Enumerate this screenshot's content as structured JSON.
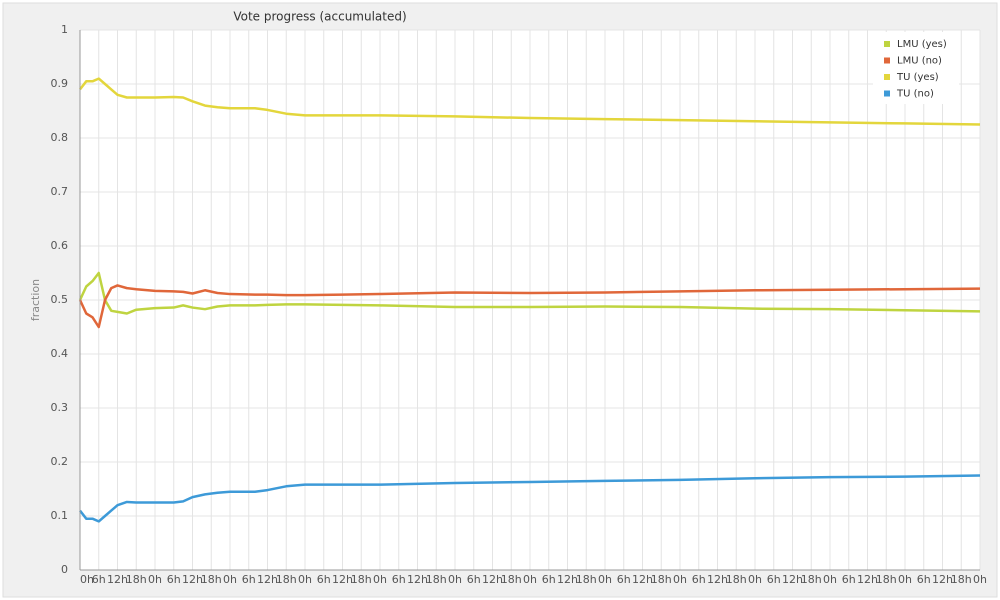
{
  "chart_data": {
    "type": "line",
    "title": "Vote progress (accumulated)",
    "y_label": "fraction",
    "x": [
      0,
      2,
      4,
      6,
      8,
      10,
      12,
      15,
      18,
      24,
      30,
      33,
      36,
      40,
      44,
      48,
      56,
      60,
      66,
      72,
      84,
      96,
      120,
      144,
      168,
      192,
      216,
      240,
      264,
      288
    ],
    "series": [
      {
        "name": "LMU (yes)",
        "color": "#bfd440",
        "values": [
          0.5,
          0.525,
          0.535,
          0.55,
          0.5,
          0.48,
          0.478,
          0.475,
          0.482,
          0.485,
          0.486,
          0.49,
          0.486,
          0.483,
          0.488,
          0.49,
          0.49,
          0.491,
          0.492,
          0.492,
          0.491,
          0.49,
          0.487,
          0.487,
          0.488,
          0.487,
          0.484,
          0.483,
          0.481,
          0.479
        ]
      },
      {
        "name": "LMU (no)",
        "color": "#e0673a",
        "values": [
          0.5,
          0.475,
          0.468,
          0.45,
          0.5,
          0.522,
          0.527,
          0.522,
          0.52,
          0.517,
          0.516,
          0.515,
          0.512,
          0.518,
          0.513,
          0.511,
          0.51,
          0.51,
          0.509,
          0.509,
          0.51,
          0.511,
          0.514,
          0.513,
          0.514,
          0.516,
          0.518,
          0.519,
          0.52,
          0.521
        ]
      },
      {
        "name": "TU (yes)",
        "color": "#e3d63c",
        "values": [
          0.89,
          0.905,
          0.905,
          0.91,
          0.9,
          0.89,
          0.88,
          0.875,
          0.875,
          0.875,
          0.876,
          0.875,
          0.868,
          0.86,
          0.857,
          0.855,
          0.855,
          0.852,
          0.845,
          0.842,
          0.842,
          0.842,
          0.84,
          0.837,
          0.835,
          0.833,
          0.831,
          0.829,
          0.827,
          0.825
        ]
      },
      {
        "name": "TU (no)",
        "color": "#3d9ad8",
        "values": [
          0.11,
          0.095,
          0.095,
          0.09,
          0.1,
          0.11,
          0.12,
          0.126,
          0.125,
          0.125,
          0.125,
          0.127,
          0.135,
          0.14,
          0.143,
          0.145,
          0.145,
          0.148,
          0.155,
          0.158,
          0.158,
          0.158,
          0.161,
          0.163,
          0.165,
          0.167,
          0.17,
          0.172,
          0.173,
          0.175
        ]
      }
    ],
    "xlim": [
      0,
      288
    ],
    "xticks": [
      {
        "value": 0,
        "label": "0h"
      },
      {
        "value": 6,
        "label": "6h"
      },
      {
        "value": 12,
        "label": "12h"
      },
      {
        "value": 18,
        "label": "18h"
      },
      {
        "value": 24,
        "label": "0h"
      },
      {
        "value": 30,
        "label": "6h"
      },
      {
        "value": 36,
        "label": "12h"
      },
      {
        "value": 42,
        "label": "18h"
      },
      {
        "value": 48,
        "label": "0h"
      },
      {
        "value": 54,
        "label": "6h"
      },
      {
        "value": 60,
        "label": "12h"
      },
      {
        "value": 66,
        "label": "18h"
      },
      {
        "value": 72,
        "label": "0h"
      },
      {
        "value": 78,
        "label": "6h"
      },
      {
        "value": 84,
        "label": "12h"
      },
      {
        "value": 90,
        "label": "18h"
      },
      {
        "value": 96,
        "label": "0h"
      },
      {
        "value": 102,
        "label": "6h"
      },
      {
        "value": 108,
        "label": "12h"
      },
      {
        "value": 114,
        "label": "18h"
      },
      {
        "value": 120,
        "label": "0h"
      },
      {
        "value": 126,
        "label": "6h"
      },
      {
        "value": 132,
        "label": "12h"
      },
      {
        "value": 138,
        "label": "18h"
      },
      {
        "value": 144,
        "label": "0h"
      },
      {
        "value": 150,
        "label": "6h"
      },
      {
        "value": 156,
        "label": "12h"
      },
      {
        "value": 162,
        "label": "18h"
      },
      {
        "value": 168,
        "label": "0h"
      },
      {
        "value": 174,
        "label": "6h"
      },
      {
        "value": 180,
        "label": "12h"
      },
      {
        "value": 186,
        "label": "18h"
      },
      {
        "value": 192,
        "label": "0h"
      },
      {
        "value": 198,
        "label": "6h"
      },
      {
        "value": 204,
        "label": "12h"
      },
      {
        "value": 210,
        "label": "18h"
      },
      {
        "value": 216,
        "label": "0h"
      },
      {
        "value": 222,
        "label": "6h"
      },
      {
        "value": 228,
        "label": "12h"
      },
      {
        "value": 234,
        "label": "18h"
      },
      {
        "value": 240,
        "label": "0h"
      },
      {
        "value": 246,
        "label": "6h"
      },
      {
        "value": 252,
        "label": "12h"
      },
      {
        "value": 258,
        "label": "18h"
      },
      {
        "value": 264,
        "label": "0h"
      },
      {
        "value": 270,
        "label": "6h"
      },
      {
        "value": 276,
        "label": "12h"
      },
      {
        "value": 282,
        "label": "18h"
      },
      {
        "value": 288,
        "label": "0h"
      }
    ],
    "ylim": [
      0,
      1
    ],
    "yticks": [
      0,
      0.1,
      0.2,
      0.3,
      0.4,
      0.5,
      0.6,
      0.7,
      0.8,
      0.9,
      1
    ],
    "grid": true
  }
}
